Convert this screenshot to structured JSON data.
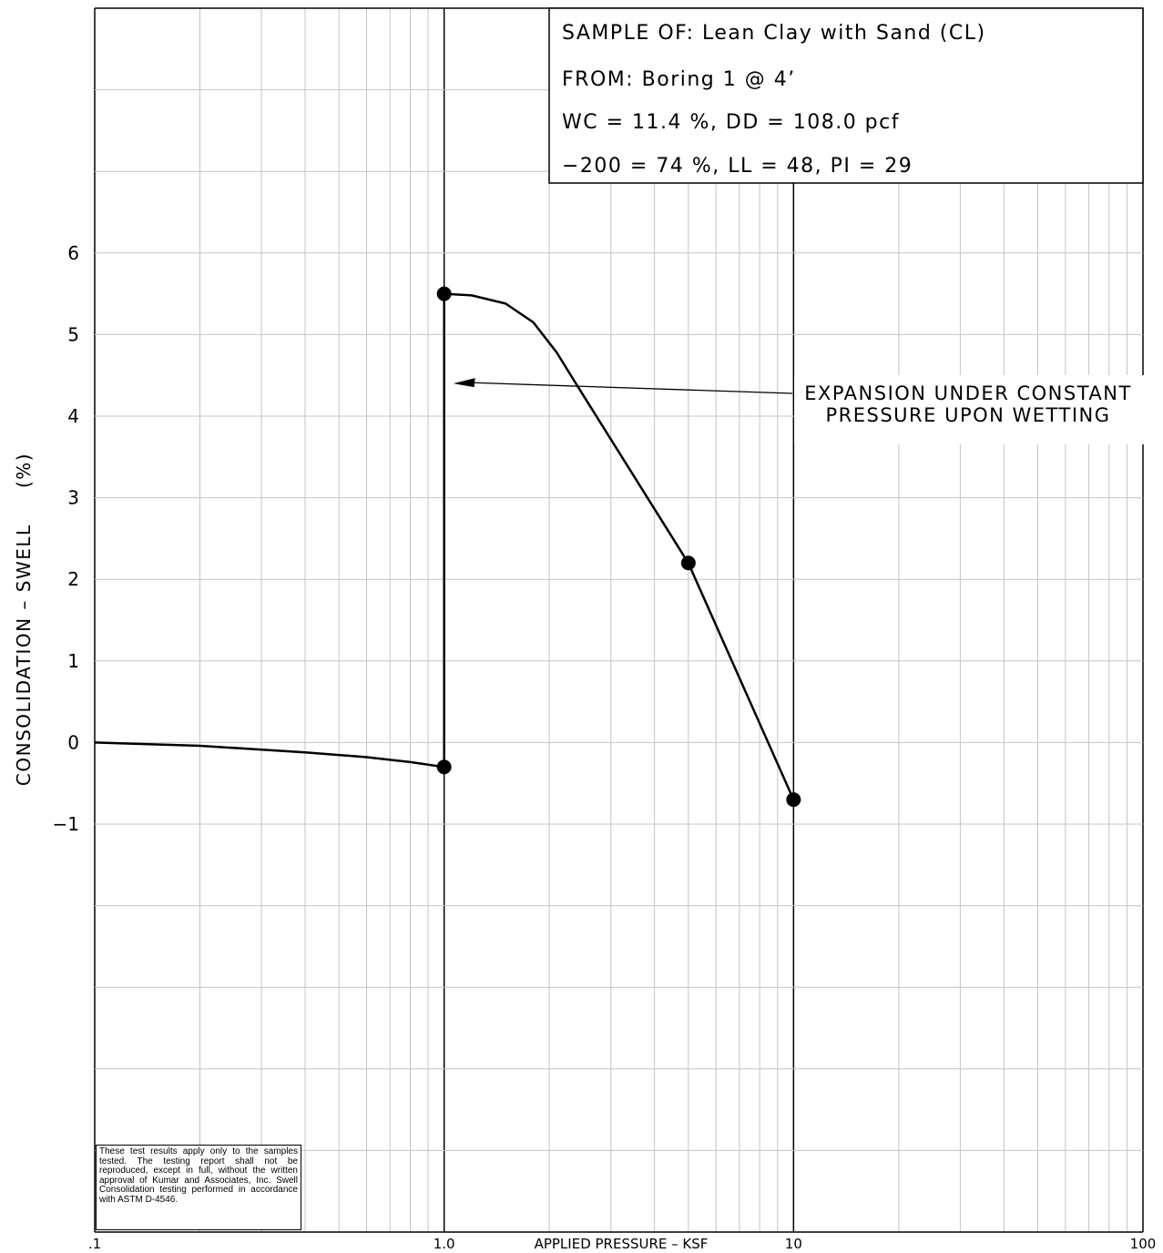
{
  "info": {
    "sample_of": "SAMPLE OF: Lean Clay with Sand (CL)",
    "from": "FROM: Boring 1 @ 4’",
    "moisture_density": "WC = 11.4 %, DD = 108.0 pcf",
    "gradation_limits": "−200 = 74 %, LL = 48, PI = 29"
  },
  "annotation": {
    "line1": "EXPANSION UNDER CONSTANT",
    "line2": "PRESSURE UPON WETTING"
  },
  "disclaimer": "These test results apply only to the samples tested. The testing report shall not be reproduced, except in full, without the written approval of Kumar and Associates, Inc. Swell Consolidation testing performed in accordance with ASTM D-4546.",
  "chart_data": {
    "type": "line",
    "xlabel": "APPLIED PRESSURE – KSF",
    "ylabel": "CONSOLIDATION – SWELL     (%)",
    "xscale": "log",
    "xlim": [
      0.1,
      100
    ],
    "ylim": [
      -6,
      9
    ],
    "grid": true,
    "x_tick_labels": [
      {
        "x": 0.1,
        "label": ".1"
      },
      {
        "x": 1.0,
        "label": "1.0"
      },
      {
        "x": 10,
        "label": "10"
      },
      {
        "x": 100,
        "label": "100"
      }
    ],
    "y_tick_labels": [
      {
        "y": 6,
        "label": "6"
      },
      {
        "y": 5,
        "label": "5"
      },
      {
        "y": 4,
        "label": "4"
      },
      {
        "y": 3,
        "label": "3"
      },
      {
        "y": 2,
        "label": "2"
      },
      {
        "y": 1,
        "label": "1"
      },
      {
        "y": 0,
        "label": "0"
      },
      {
        "y": -1,
        "label": "−1"
      }
    ],
    "curve": [
      {
        "x": 0.1,
        "y": 0.0
      },
      {
        "x": 0.2,
        "y": -0.04
      },
      {
        "x": 0.4,
        "y": -0.12
      },
      {
        "x": 0.6,
        "y": -0.18
      },
      {
        "x": 0.8,
        "y": -0.24
      },
      {
        "x": 1.0,
        "y": -0.3
      },
      {
        "x": 1.0,
        "y": 5.5
      },
      {
        "x": 1.2,
        "y": 5.48
      },
      {
        "x": 1.5,
        "y": 5.38
      },
      {
        "x": 1.8,
        "y": 5.15
      },
      {
        "x": 2.1,
        "y": 4.78
      },
      {
        "x": 2.4,
        "y": 4.38
      },
      {
        "x": 5.0,
        "y": 2.2
      },
      {
        "x": 10.0,
        "y": -0.7
      }
    ],
    "points": [
      {
        "x": 1.0,
        "y": -0.3
      },
      {
        "x": 1.0,
        "y": 5.5
      },
      {
        "x": 5.0,
        "y": 2.2
      },
      {
        "x": 10.0,
        "y": -0.7
      }
    ],
    "arrow_target": {
      "x": 1.0,
      "y": 4.4
    }
  }
}
